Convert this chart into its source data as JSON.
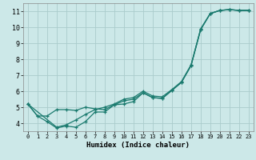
{
  "title": "",
  "xlabel": "Humidex (Indice chaleur)",
  "bg_color": "#cce8e8",
  "grid_color": "#aacccc",
  "line_color": "#1a7a6e",
  "xlim": [
    -0.5,
    23.5
  ],
  "ylim": [
    3.5,
    11.5
  ],
  "xticks": [
    0,
    1,
    2,
    3,
    4,
    5,
    6,
    7,
    8,
    9,
    10,
    11,
    12,
    13,
    14,
    15,
    16,
    17,
    18,
    19,
    20,
    21,
    22,
    23
  ],
  "yticks": [
    4,
    5,
    6,
    7,
    8,
    9,
    10,
    11
  ],
  "line1_x": [
    0,
    1,
    2,
    3,
    4,
    5,
    6,
    7,
    8,
    9,
    10,
    11,
    12,
    13,
    14,
    15,
    16,
    17,
    18,
    19,
    20,
    21,
    22,
    23
  ],
  "line1_y": [
    5.2,
    4.45,
    4.1,
    3.7,
    3.82,
    3.75,
    4.1,
    4.7,
    4.7,
    5.15,
    5.2,
    5.35,
    5.9,
    5.6,
    5.55,
    6.05,
    6.55,
    7.6,
    9.85,
    10.85,
    11.05,
    11.1,
    11.05,
    11.05
  ],
  "line2_x": [
    0,
    1,
    2,
    3,
    4,
    5,
    6,
    7,
    8,
    9,
    10,
    11,
    12,
    13,
    14,
    15,
    16,
    17,
    18,
    19,
    20,
    21,
    22,
    23
  ],
  "line2_y": [
    5.2,
    4.45,
    4.45,
    4.85,
    4.85,
    4.8,
    5.0,
    4.9,
    4.85,
    5.15,
    5.4,
    5.5,
    5.9,
    5.6,
    5.55,
    6.05,
    6.55,
    7.6,
    9.85,
    10.85,
    11.05,
    11.1,
    11.05,
    11.05
  ],
  "line3_x": [
    0,
    3,
    4,
    5,
    6,
    7,
    8,
    9,
    10,
    11,
    12,
    13,
    14,
    15,
    16,
    17,
    18,
    19,
    20,
    21,
    22,
    23
  ],
  "line3_y": [
    5.2,
    3.75,
    3.9,
    4.2,
    4.55,
    4.85,
    5.0,
    5.2,
    5.5,
    5.6,
    6.0,
    5.7,
    5.65,
    6.1,
    6.6,
    7.65,
    9.9,
    10.85,
    11.05,
    11.1,
    11.05,
    11.05
  ]
}
